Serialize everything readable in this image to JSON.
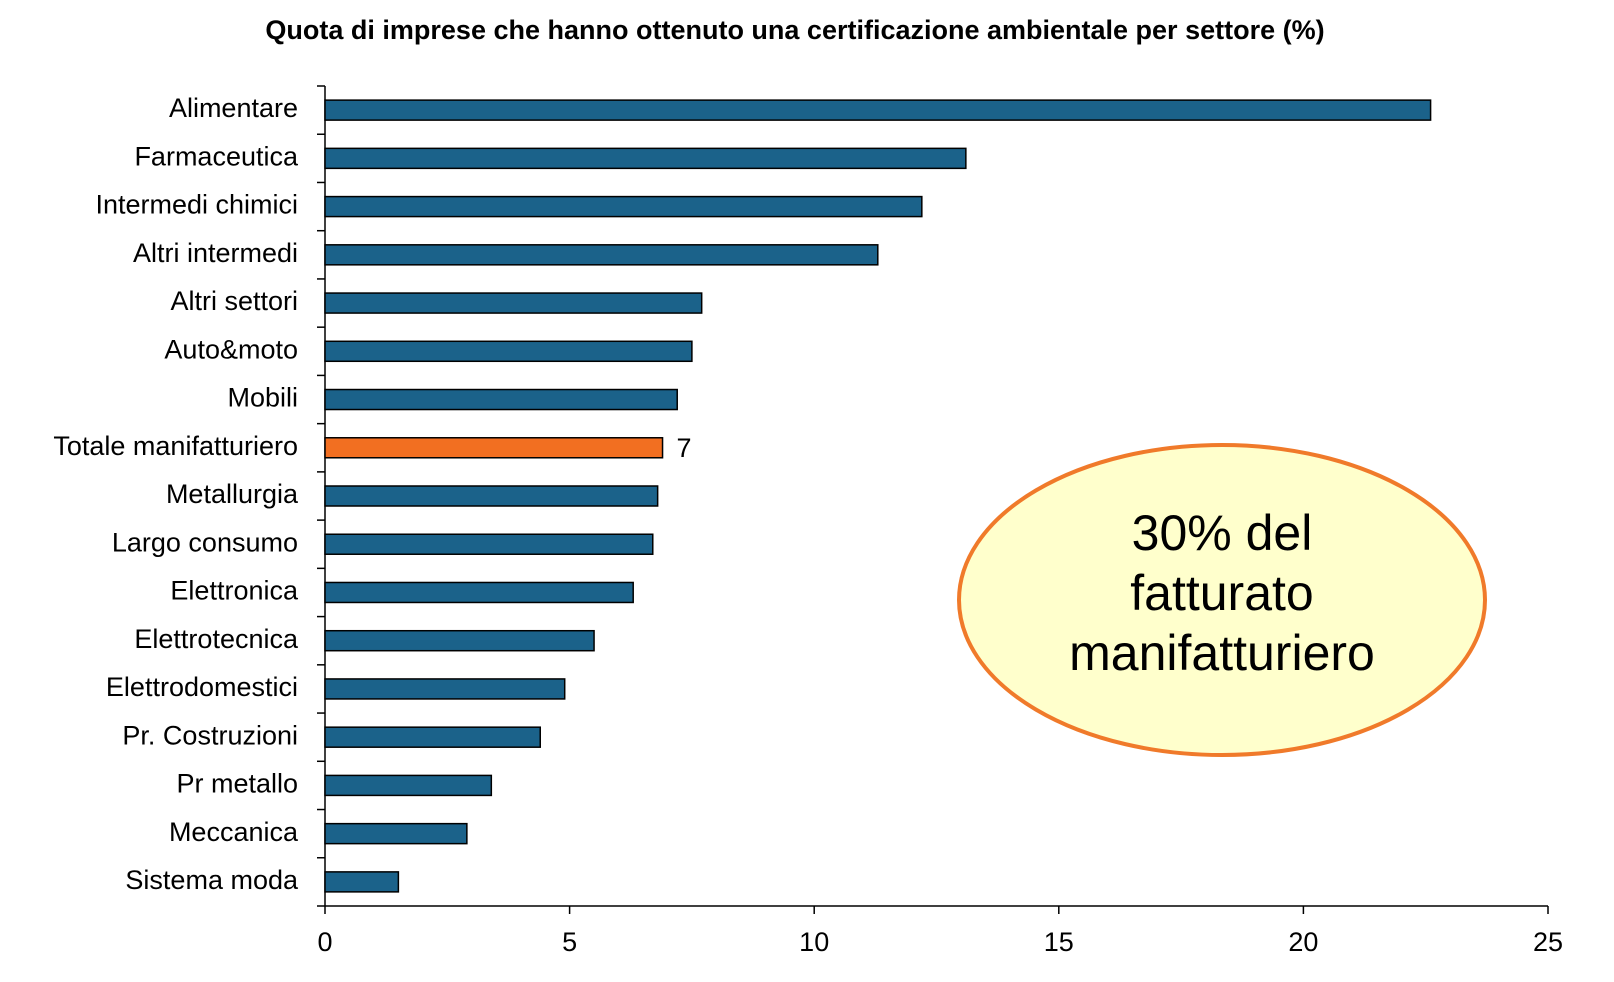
{
  "chart_data": {
    "type": "hbar",
    "title": "Quota di imprese che hanno ottenuto una certificazione ambientale per settore (%)",
    "categories": [
      "Alimentare",
      "Farmaceutica",
      "Intermedi chimici",
      "Altri intermedi",
      "Altri settori",
      "Auto&moto",
      "Mobili",
      "Totale manifatturiero",
      "Metallurgia",
      "Largo consumo",
      "Elettronica",
      "Elettrotecnica",
      "Elettrodomestici",
      "Pr. Costruzioni",
      "Pr metallo",
      "Meccanica",
      "Sistema moda"
    ],
    "values": [
      22.6,
      13.1,
      12.2,
      11.3,
      7.7,
      7.5,
      7.2,
      6.9,
      6.8,
      6.7,
      6.3,
      5.5,
      4.9,
      4.4,
      3.4,
      2.9,
      1.5
    ],
    "value_labels": [
      null,
      null,
      null,
      null,
      null,
      null,
      null,
      "7",
      null,
      null,
      null,
      null,
      null,
      null,
      null,
      null,
      null
    ],
    "colors": [
      "#1b628a",
      "#1b628a",
      "#1b628a",
      "#1b628a",
      "#1b628a",
      "#1b628a",
      "#1b628a",
      "#f26f21",
      "#1b628a",
      "#1b628a",
      "#1b628a",
      "#1b628a",
      "#1b628a",
      "#1b628a",
      "#1b628a",
      "#1b628a",
      "#1b628a"
    ],
    "xlim": [
      0,
      25
    ],
    "xticks": [
      0,
      5,
      10,
      15,
      20,
      25
    ],
    "grid": false,
    "annotation": [
      "30% del",
      "fatturato",
      "manifatturiero"
    ]
  }
}
